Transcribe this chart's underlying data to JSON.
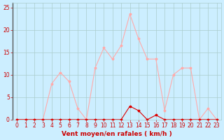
{
  "hours": [
    0,
    1,
    2,
    3,
    4,
    5,
    6,
    7,
    8,
    9,
    10,
    11,
    12,
    13,
    14,
    15,
    16,
    17,
    18,
    19,
    20,
    21,
    22,
    23
  ],
  "vent_moyen": [
    0,
    0,
    0,
    0,
    0,
    0,
    0,
    0,
    0,
    0,
    0,
    0,
    0,
    3,
    2,
    0,
    1,
    0,
    0,
    0,
    0,
    0,
    0,
    0
  ],
  "rafales": [
    0,
    0,
    0,
    0,
    8,
    10.5,
    8.5,
    2.5,
    0,
    11.5,
    16,
    13.5,
    16.5,
    23.5,
    18,
    13.5,
    13.5,
    2,
    10,
    11.5,
    11.5,
    0,
    2.5,
    0
  ],
  "line_color_moyen": "#dd0000",
  "line_color_rafales": "#ffaaaa",
  "bg_color": "#cceeff",
  "grid_color": "#aacccc",
  "xlabel": "Vent moyen/en rafales ( km/h )",
  "xlabel_color": "#cc0000",
  "tick_color": "#cc0000",
  "spine_color": "#888888",
  "ylim": [
    0,
    26
  ],
  "xlim": [
    -0.5,
    23.5
  ],
  "yticks": [
    0,
    5,
    10,
    15,
    20,
    25
  ],
  "xticks": [
    0,
    1,
    2,
    3,
    4,
    5,
    6,
    7,
    8,
    9,
    10,
    11,
    12,
    13,
    14,
    15,
    16,
    17,
    18,
    19,
    20,
    21,
    22,
    23
  ]
}
